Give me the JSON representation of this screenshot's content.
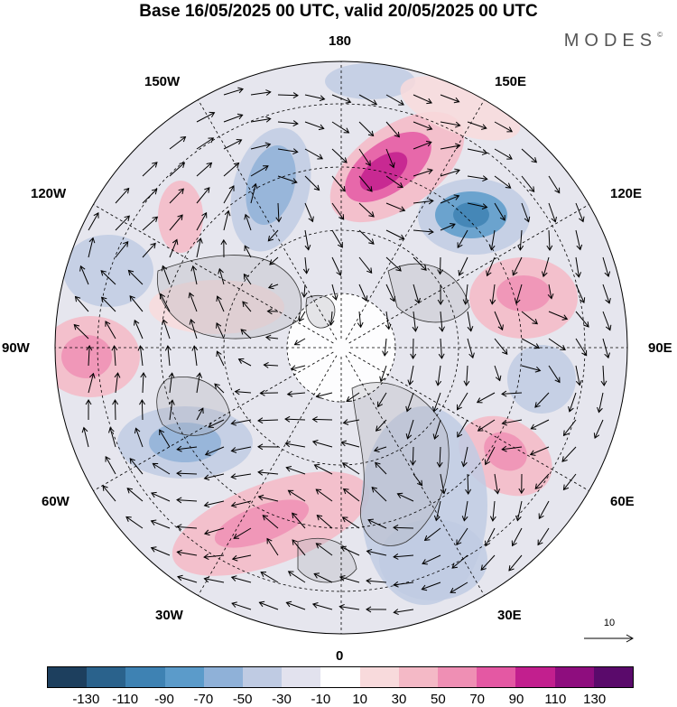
{
  "header": {
    "title": "Base 16/05/2025 00 UTC, valid 20/05/2025 00 UTC",
    "brand": "MODES",
    "brand_mark": "©"
  },
  "map": {
    "projection": "north-polar-stereographic",
    "longitude_labels": {
      "l180": "180",
      "l150E": "150E",
      "l120E": "120E",
      "l90E": "90E",
      "l60E": "60E",
      "l30E": "30E",
      "l0": "0",
      "l30W": "30W",
      "l60W": "60W",
      "l90W": "90W",
      "l120W": "120W",
      "l150W": "150W"
    },
    "vector_scale_label": "10",
    "colors": {
      "land_outline": "#333333",
      "grid": "#000000",
      "vector": "#000000"
    }
  },
  "colorbar": {
    "ticks": [
      "-130",
      "-110",
      "-90",
      "-70",
      "-50",
      "-30",
      "-10",
      "10",
      "30",
      "50",
      "70",
      "90",
      "110",
      "130"
    ],
    "colors": [
      "#1d3f5e",
      "#2a628c",
      "#3e82b3",
      "#5b9bca",
      "#8fb1d8",
      "#bfcbe3",
      "#e2e2ee",
      "#ffffff",
      "#f8dadc",
      "#f4b9c6",
      "#ef8fb4",
      "#e458a3",
      "#c21f8e",
      "#8e0d7e",
      "#5a0a6b"
    ]
  }
}
